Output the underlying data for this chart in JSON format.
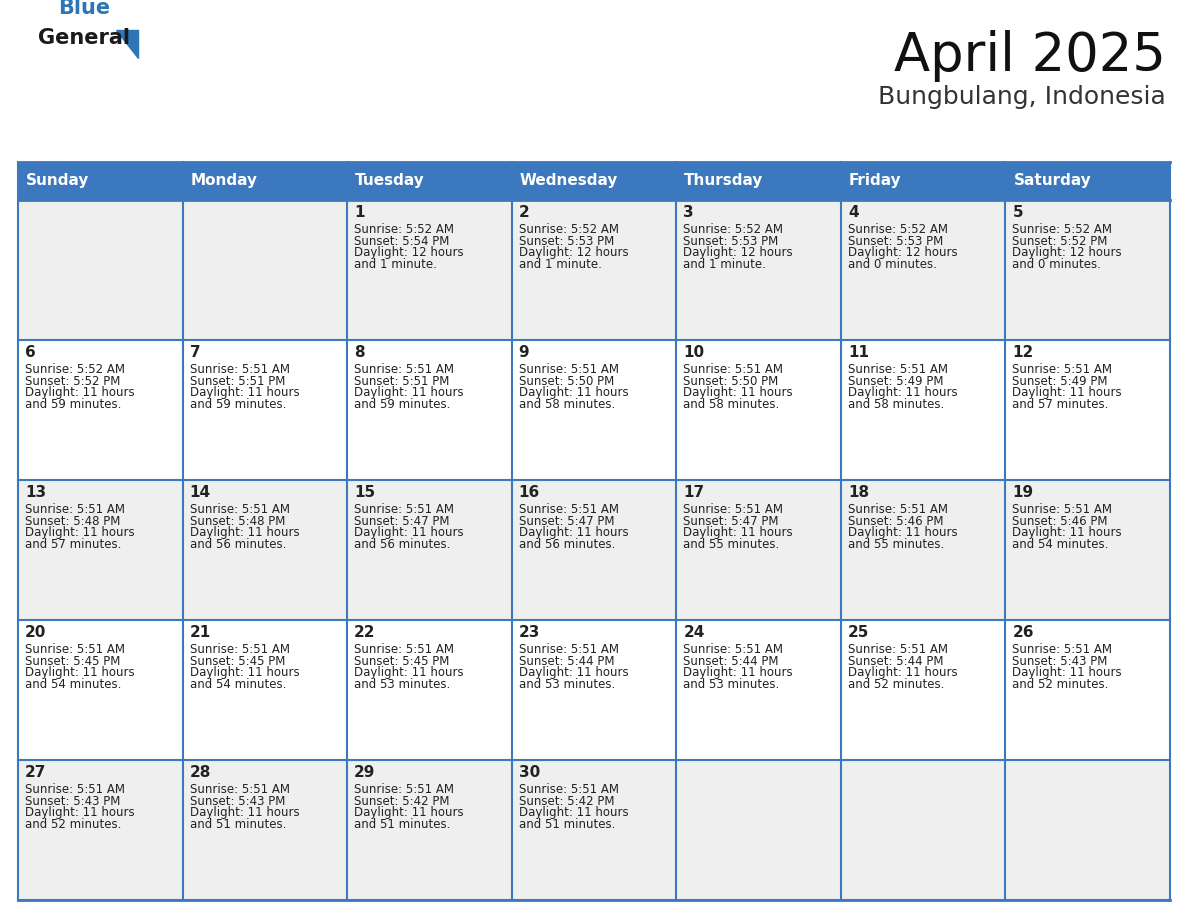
{
  "title": "April 2025",
  "subtitle": "Bungbulang, Indonesia",
  "days_of_week": [
    "Sunday",
    "Monday",
    "Tuesday",
    "Wednesday",
    "Thursday",
    "Friday",
    "Saturday"
  ],
  "header_bg": "#3C78BE",
  "header_text": "#FFFFFF",
  "cell_bg_white": "#FFFFFF",
  "cell_bg_gray": "#EFEFEF",
  "cell_border_color": "#3C78BE",
  "cell_border_thin": "#AAAAAA",
  "text_color": "#222222",
  "day_num_color": "#222222",
  "calendar_data": [
    [
      {
        "day": null,
        "sunrise": null,
        "sunset": null,
        "daylight": null
      },
      {
        "day": null,
        "sunrise": null,
        "sunset": null,
        "daylight": null
      },
      {
        "day": 1,
        "sunrise": "5:52 AM",
        "sunset": "5:54 PM",
        "daylight": "12 hours and 1 minute."
      },
      {
        "day": 2,
        "sunrise": "5:52 AM",
        "sunset": "5:53 PM",
        "daylight": "12 hours and 1 minute."
      },
      {
        "day": 3,
        "sunrise": "5:52 AM",
        "sunset": "5:53 PM",
        "daylight": "12 hours and 1 minute."
      },
      {
        "day": 4,
        "sunrise": "5:52 AM",
        "sunset": "5:53 PM",
        "daylight": "12 hours and 0 minutes."
      },
      {
        "day": 5,
        "sunrise": "5:52 AM",
        "sunset": "5:52 PM",
        "daylight": "12 hours and 0 minutes."
      }
    ],
    [
      {
        "day": 6,
        "sunrise": "5:52 AM",
        "sunset": "5:52 PM",
        "daylight": "11 hours and 59 minutes."
      },
      {
        "day": 7,
        "sunrise": "5:51 AM",
        "sunset": "5:51 PM",
        "daylight": "11 hours and 59 minutes."
      },
      {
        "day": 8,
        "sunrise": "5:51 AM",
        "sunset": "5:51 PM",
        "daylight": "11 hours and 59 minutes."
      },
      {
        "day": 9,
        "sunrise": "5:51 AM",
        "sunset": "5:50 PM",
        "daylight": "11 hours and 58 minutes."
      },
      {
        "day": 10,
        "sunrise": "5:51 AM",
        "sunset": "5:50 PM",
        "daylight": "11 hours and 58 minutes."
      },
      {
        "day": 11,
        "sunrise": "5:51 AM",
        "sunset": "5:49 PM",
        "daylight": "11 hours and 58 minutes."
      },
      {
        "day": 12,
        "sunrise": "5:51 AM",
        "sunset": "5:49 PM",
        "daylight": "11 hours and 57 minutes."
      }
    ],
    [
      {
        "day": 13,
        "sunrise": "5:51 AM",
        "sunset": "5:48 PM",
        "daylight": "11 hours and 57 minutes."
      },
      {
        "day": 14,
        "sunrise": "5:51 AM",
        "sunset": "5:48 PM",
        "daylight": "11 hours and 56 minutes."
      },
      {
        "day": 15,
        "sunrise": "5:51 AM",
        "sunset": "5:47 PM",
        "daylight": "11 hours and 56 minutes."
      },
      {
        "day": 16,
        "sunrise": "5:51 AM",
        "sunset": "5:47 PM",
        "daylight": "11 hours and 56 minutes."
      },
      {
        "day": 17,
        "sunrise": "5:51 AM",
        "sunset": "5:47 PM",
        "daylight": "11 hours and 55 minutes."
      },
      {
        "day": 18,
        "sunrise": "5:51 AM",
        "sunset": "5:46 PM",
        "daylight": "11 hours and 55 minutes."
      },
      {
        "day": 19,
        "sunrise": "5:51 AM",
        "sunset": "5:46 PM",
        "daylight": "11 hours and 54 minutes."
      }
    ],
    [
      {
        "day": 20,
        "sunrise": "5:51 AM",
        "sunset": "5:45 PM",
        "daylight": "11 hours and 54 minutes."
      },
      {
        "day": 21,
        "sunrise": "5:51 AM",
        "sunset": "5:45 PM",
        "daylight": "11 hours and 54 minutes."
      },
      {
        "day": 22,
        "sunrise": "5:51 AM",
        "sunset": "5:45 PM",
        "daylight": "11 hours and 53 minutes."
      },
      {
        "day": 23,
        "sunrise": "5:51 AM",
        "sunset": "5:44 PM",
        "daylight": "11 hours and 53 minutes."
      },
      {
        "day": 24,
        "sunrise": "5:51 AM",
        "sunset": "5:44 PM",
        "daylight": "11 hours and 53 minutes."
      },
      {
        "day": 25,
        "sunrise": "5:51 AM",
        "sunset": "5:44 PM",
        "daylight": "11 hours and 52 minutes."
      },
      {
        "day": 26,
        "sunrise": "5:51 AM",
        "sunset": "5:43 PM",
        "daylight": "11 hours and 52 minutes."
      }
    ],
    [
      {
        "day": 27,
        "sunrise": "5:51 AM",
        "sunset": "5:43 PM",
        "daylight": "11 hours and 52 minutes."
      },
      {
        "day": 28,
        "sunrise": "5:51 AM",
        "sunset": "5:43 PM",
        "daylight": "11 hours and 51 minutes."
      },
      {
        "day": 29,
        "sunrise": "5:51 AM",
        "sunset": "5:42 PM",
        "daylight": "11 hours and 51 minutes."
      },
      {
        "day": 30,
        "sunrise": "5:51 AM",
        "sunset": "5:42 PM",
        "daylight": "11 hours and 51 minutes."
      },
      {
        "day": null,
        "sunrise": null,
        "sunset": null,
        "daylight": null
      },
      {
        "day": null,
        "sunrise": null,
        "sunset": null,
        "daylight": null
      },
      {
        "day": null,
        "sunrise": null,
        "sunset": null,
        "daylight": null
      }
    ]
  ],
  "logo_color_general": "#1a1a1a",
  "logo_color_blue": "#2E75B6",
  "logo_triangle_color": "#2E75B6",
  "title_fontsize": 38,
  "subtitle_fontsize": 18,
  "header_fontsize": 11,
  "daynum_fontsize": 11,
  "cell_fontsize": 8.5
}
